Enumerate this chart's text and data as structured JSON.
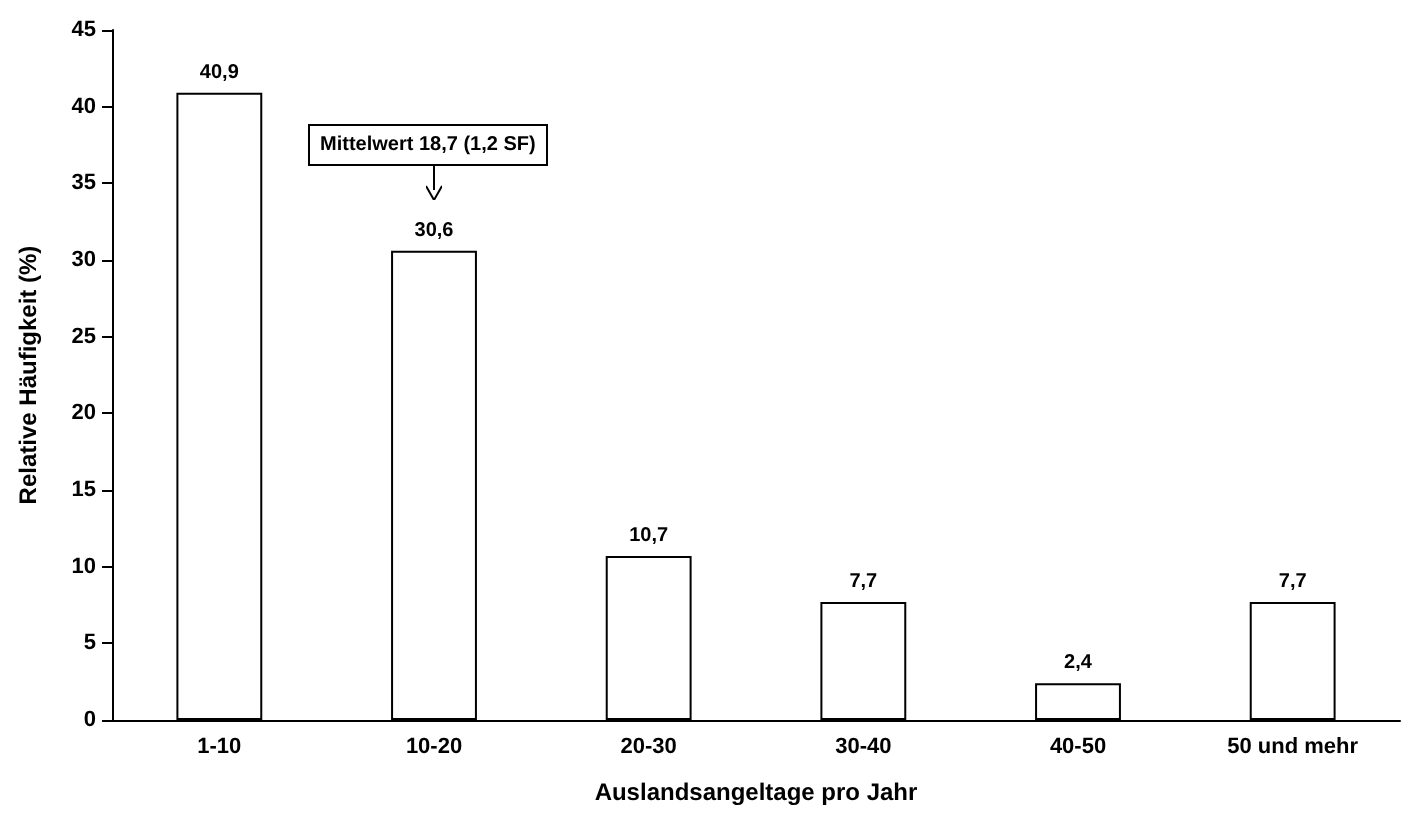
{
  "chart_data": {
    "type": "bar",
    "xlabel": "Auslandsangeltage pro Jahr",
    "ylabel": "Relative Häufigkeit (%)",
    "categories": [
      "1-10",
      "10-20",
      "20-30",
      "30-40",
      "40-50",
      "50 und mehr"
    ],
    "values": [
      40.9,
      30.6,
      10.7,
      7.7,
      2.4,
      7.7
    ],
    "value_labels": [
      "40,9",
      "30,6",
      "10,7",
      "7,7",
      "2,4",
      "7,7"
    ],
    "color": "#ffffff",
    "ylim": [
      0,
      45
    ],
    "yticks": [
      0,
      5,
      10,
      15,
      20,
      25,
      30,
      35,
      40,
      45
    ],
    "grid": false,
    "annotations": [
      "Mittelwert 18,7 (1,2 SF)"
    ]
  }
}
